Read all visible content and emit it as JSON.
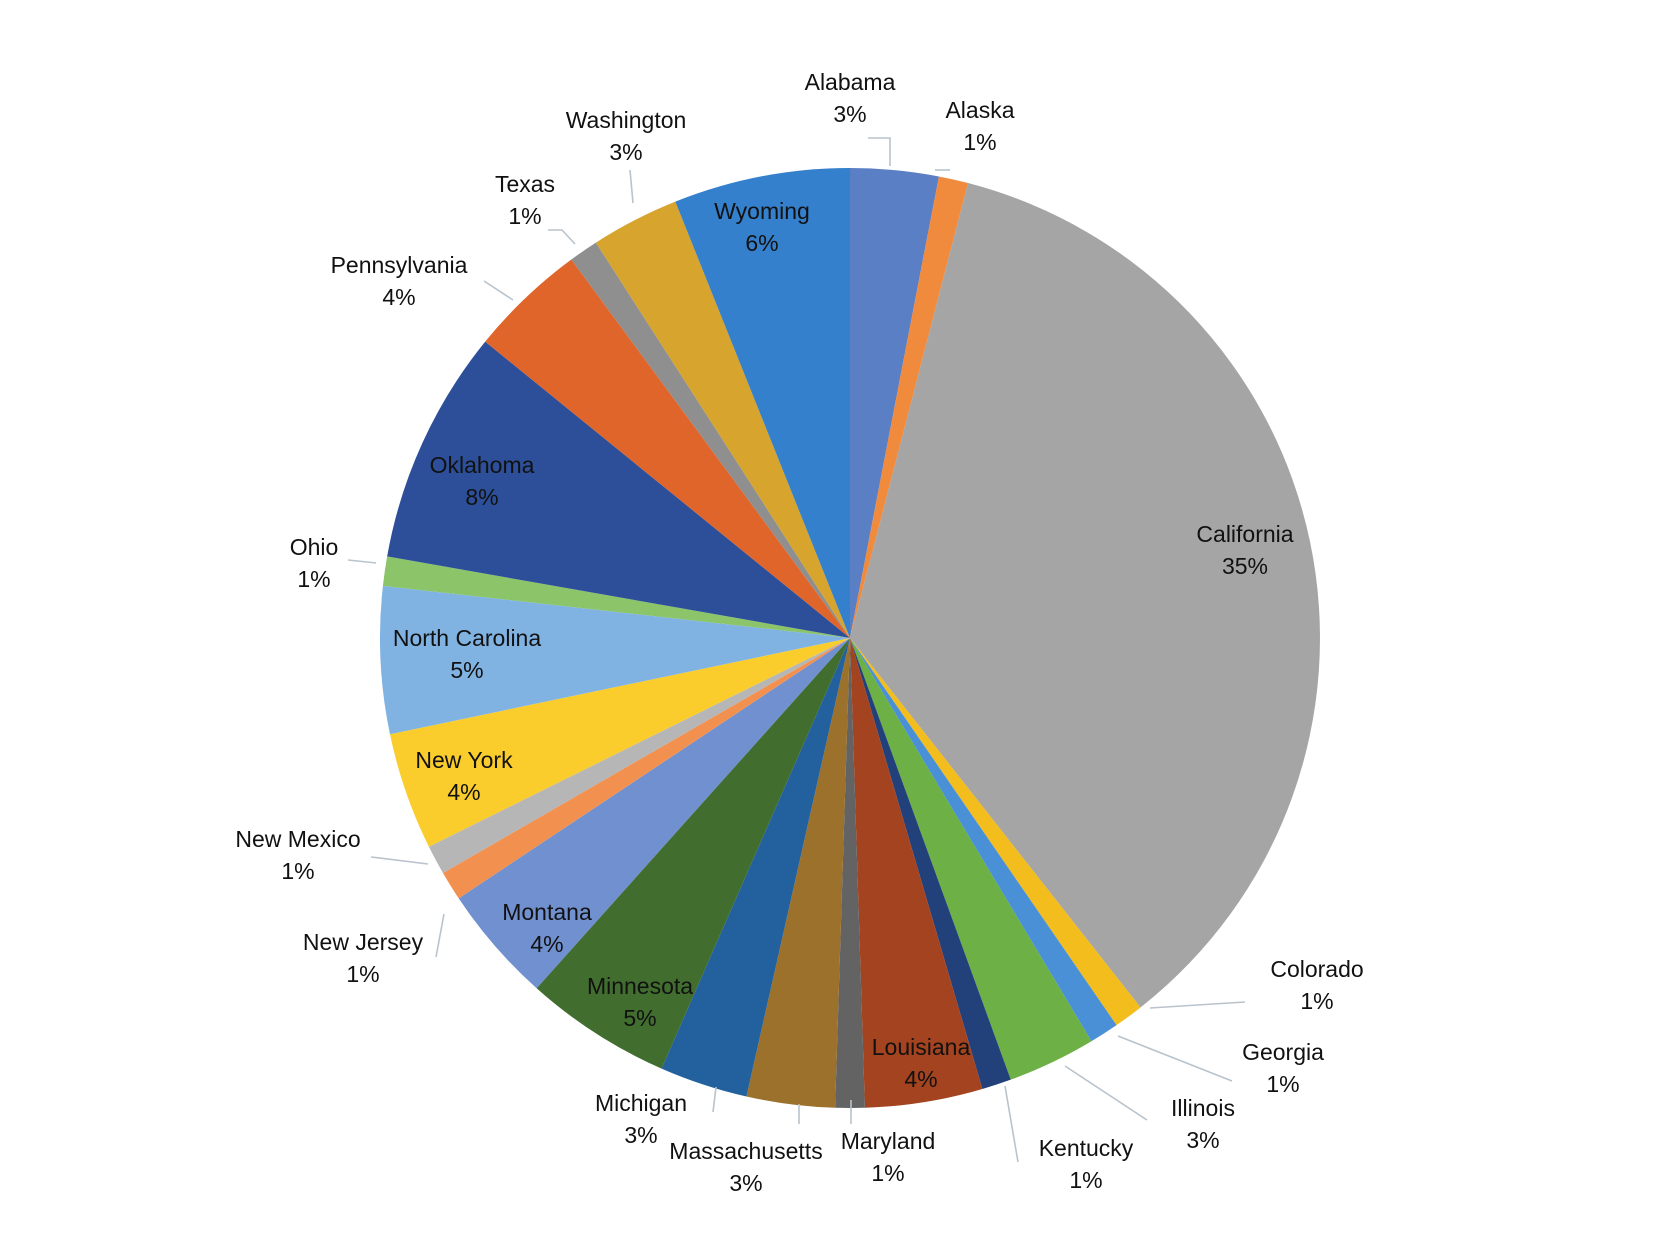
{
  "chart_data": {
    "type": "pie",
    "title": "",
    "legend": "none",
    "slices": [
      {
        "label": "Alabama",
        "value": 3,
        "value_label": "3%",
        "color": "#5b7fc4"
      },
      {
        "label": "Alaska",
        "value": 1,
        "value_label": "1%",
        "color": "#f08a3c"
      },
      {
        "label": "California",
        "value": 35,
        "value_label": "35%",
        "color": "#a5a5a5"
      },
      {
        "label": "Colorado",
        "value": 1,
        "value_label": "1%",
        "color": "#f2bd1d"
      },
      {
        "label": "Georgia",
        "value": 1,
        "value_label": "1%",
        "color": "#4a90d6"
      },
      {
        "label": "Illinois",
        "value": 3,
        "value_label": "3%",
        "color": "#6db045"
      },
      {
        "label": "Kentucky",
        "value": 1,
        "value_label": "1%",
        "color": "#22407a"
      },
      {
        "label": "Louisiana",
        "value": 4,
        "value_label": "4%",
        "color": "#a4431f"
      },
      {
        "label": "Maryland",
        "value": 1,
        "value_label": "1%",
        "color": "#636363"
      },
      {
        "label": "Massachusetts",
        "value": 3,
        "value_label": "3%",
        "color": "#9b712b"
      },
      {
        "label": "Michigan",
        "value": 3,
        "value_label": "3%",
        "color": "#22609e"
      },
      {
        "label": "Minnesota",
        "value": 5,
        "value_label": "5%",
        "color": "#416d2f"
      },
      {
        "label": "Montana",
        "value": 4,
        "value_label": "4%",
        "color": "#7090cf"
      },
      {
        "label": "New Jersey",
        "value": 1,
        "value_label": "1%",
        "color": "#f2914f"
      },
      {
        "label": "New Mexico",
        "value": 1,
        "value_label": "1%",
        "color": "#b6b6b6"
      },
      {
        "label": "New York",
        "value": 4,
        "value_label": "4%",
        "color": "#fbcd2c"
      },
      {
        "label": "North Carolina",
        "value": 5,
        "value_label": "5%",
        "color": "#80b3e2"
      },
      {
        "label": "Ohio",
        "value": 1,
        "value_label": "1%",
        "color": "#8cc46a"
      },
      {
        "label": "Oklahoma",
        "value": 8,
        "value_label": "8%",
        "color": "#2d4f99"
      },
      {
        "label": "Pennsylvania",
        "value": 4,
        "value_label": "4%",
        "color": "#e0652a"
      },
      {
        "label": "Texas",
        "value": 1,
        "value_label": "1%",
        "color": "#8f8f8f"
      },
      {
        "label": "Washington",
        "value": 3,
        "value_label": "3%",
        "color": "#d7a42d"
      },
      {
        "label": "Wyoming",
        "value": 6,
        "value_label": "6%",
        "color": "#3580cc"
      }
    ]
  }
}
